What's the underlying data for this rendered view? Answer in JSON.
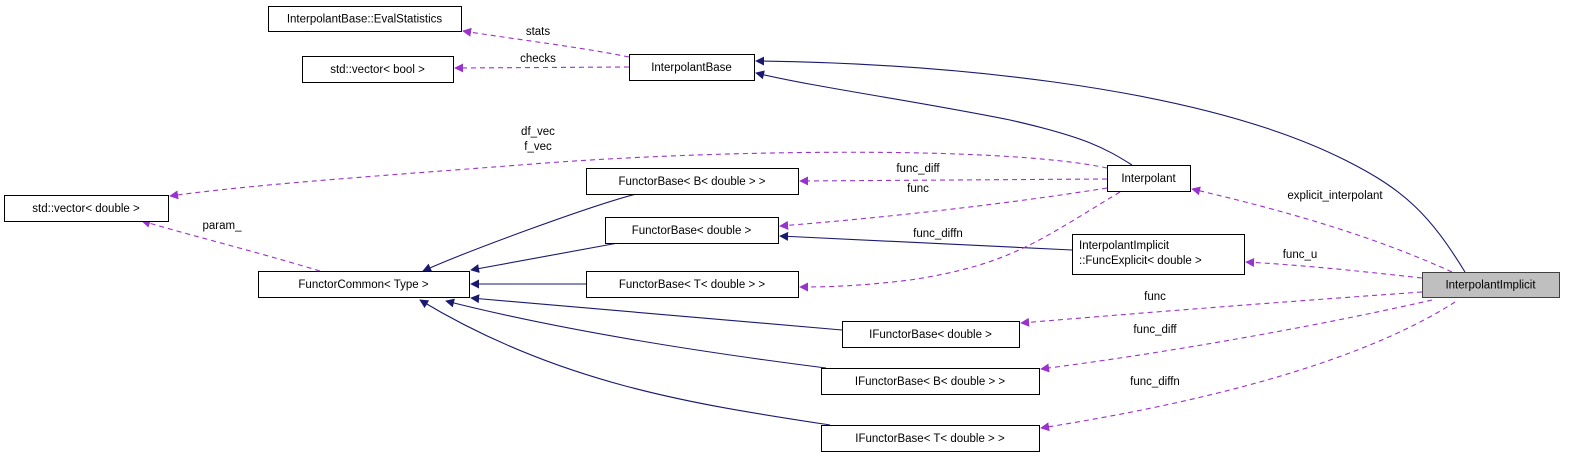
{
  "colors": {
    "inheritance": "#191970",
    "usage": "#9a32cd",
    "focus_fill": "#bfbfbf"
  },
  "nodes": [
    {
      "id": "evalstats",
      "label": [
        "InterpolantBase::EvalStatistics"
      ]
    },
    {
      "id": "vecbool",
      "label": [
        "std::vector< bool >"
      ]
    },
    {
      "id": "ibase",
      "label": [
        "InterpolantBase"
      ]
    },
    {
      "id": "vecdouble",
      "label": [
        "std::vector< double >"
      ]
    },
    {
      "id": "fbB",
      "label": [
        "FunctorBase< B< double > >"
      ]
    },
    {
      "id": "fbd",
      "label": [
        "FunctorBase< double >"
      ]
    },
    {
      "id": "fcommon",
      "label": [
        "FunctorCommon< Type >"
      ]
    },
    {
      "id": "fbT",
      "label": [
        "FunctorBase< T< double > >"
      ]
    },
    {
      "id": "interp",
      "label": [
        "Interpolant"
      ]
    },
    {
      "id": "fexpl",
      "label": [
        "InterpolantImplicit",
        "::FuncExplicit< double >"
      ]
    },
    {
      "id": "iimpl",
      "label": [
        "InterpolantImplicit"
      ],
      "focus": true
    },
    {
      "id": "ifbd",
      "label": [
        "IFunctorBase< double >"
      ]
    },
    {
      "id": "ifbB",
      "label": [
        "IFunctorBase< B< double > >"
      ]
    },
    {
      "id": "ifbT",
      "label": [
        "IFunctorBase< T< double > >"
      ]
    }
  ],
  "edges": [
    {
      "from": "iimpl",
      "to": "ibase",
      "kind": "inheritance",
      "label": []
    },
    {
      "from": "interp",
      "to": "ibase",
      "kind": "inheritance",
      "label": []
    },
    {
      "from": "fbB",
      "to": "fcommon",
      "kind": "inheritance",
      "label": []
    },
    {
      "from": "fbd",
      "to": "fcommon",
      "kind": "inheritance",
      "label": []
    },
    {
      "from": "fbT",
      "to": "fcommon",
      "kind": "inheritance",
      "label": []
    },
    {
      "from": "ifbd",
      "to": "fcommon",
      "kind": "inheritance",
      "label": []
    },
    {
      "from": "ifbB",
      "to": "fcommon",
      "kind": "inheritance",
      "label": []
    },
    {
      "from": "ifbT",
      "to": "fcommon",
      "kind": "inheritance",
      "label": []
    },
    {
      "from": "fexpl",
      "to": "fbd",
      "kind": "inheritance",
      "label": []
    },
    {
      "from": "ibase",
      "to": "evalstats",
      "kind": "usage",
      "label": [
        "stats"
      ]
    },
    {
      "from": "ibase",
      "to": "vecbool",
      "kind": "usage",
      "label": [
        "checks"
      ]
    },
    {
      "from": "interp",
      "to": "vecdouble",
      "kind": "usage",
      "label": [
        "df_vec",
        "f_vec"
      ]
    },
    {
      "from": "interp",
      "to": "fbB",
      "kind": "usage",
      "label": [
        "func_diff"
      ]
    },
    {
      "from": "interp",
      "to": "fbd",
      "kind": "usage",
      "label": [
        "func"
      ]
    },
    {
      "from": "interp",
      "to": "fbT",
      "kind": "usage",
      "label": [
        "func_diffn"
      ]
    },
    {
      "from": "fcommon",
      "to": "vecdouble",
      "kind": "usage",
      "label": [
        "param_"
      ]
    },
    {
      "from": "iimpl",
      "to": "interp",
      "kind": "usage",
      "label": [
        "explicit_interpolant"
      ]
    },
    {
      "from": "iimpl",
      "to": "fexpl",
      "kind": "usage",
      "label": [
        "func_u"
      ]
    },
    {
      "from": "iimpl",
      "to": "ifbd",
      "kind": "usage",
      "label": [
        "func"
      ]
    },
    {
      "from": "iimpl",
      "to": "ifbB",
      "kind": "usage",
      "label": [
        "func_diff"
      ]
    },
    {
      "from": "iimpl",
      "to": "ifbT",
      "kind": "usage",
      "label": [
        "func_diffn"
      ]
    }
  ]
}
